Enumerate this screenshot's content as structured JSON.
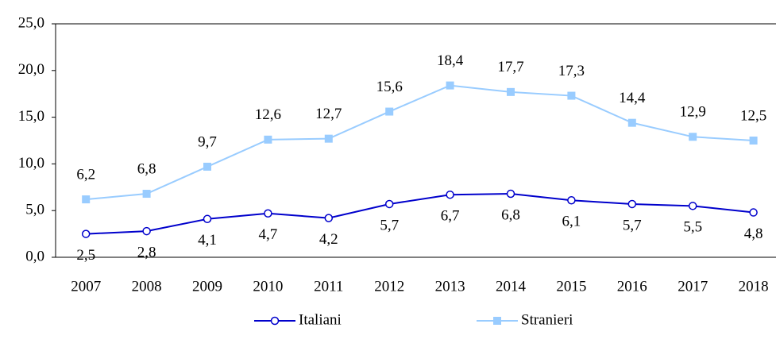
{
  "chart_data": {
    "type": "line",
    "categories": [
      "2007",
      "2008",
      "2009",
      "2010",
      "2011",
      "2012",
      "2013",
      "2014",
      "2015",
      "2016",
      "2017",
      "2018"
    ],
    "series": [
      {
        "name": "Italiani",
        "color": "#0000cc",
        "marker": "circle",
        "values": [
          2.5,
          2.8,
          4.1,
          4.7,
          4.2,
          5.7,
          6.7,
          6.8,
          6.1,
          5.7,
          5.5,
          4.8
        ],
        "value_labels": [
          "2,5",
          "2,8",
          "4,1",
          "4,7",
          "4,2",
          "5,7",
          "6,7",
          "6,8",
          "6,1",
          "5,7",
          "5,5",
          "4,8"
        ]
      },
      {
        "name": "Stranieri",
        "color": "#99ccff",
        "marker": "square",
        "values": [
          6.2,
          6.8,
          9.7,
          12.6,
          12.7,
          15.6,
          18.4,
          17.7,
          17.3,
          14.4,
          12.9,
          12.5
        ],
        "value_labels": [
          "6,2",
          "6,8",
          "9,7",
          "12,6",
          "12,7",
          "15,6",
          "18,4",
          "17,7",
          "17,3",
          "14,4",
          "12,9",
          "12,5"
        ]
      }
    ],
    "ylim": [
      0,
      25
    ],
    "yticks": [
      {
        "value": 0,
        "label": "0,0"
      },
      {
        "value": 5,
        "label": "5,0"
      },
      {
        "value": 10,
        "label": "10,0"
      },
      {
        "value": 15,
        "label": "15,0"
      },
      {
        "value": 20,
        "label": "20,0"
      },
      {
        "value": 25,
        "label": "25,0"
      }
    ],
    "legend": "bottom"
  }
}
